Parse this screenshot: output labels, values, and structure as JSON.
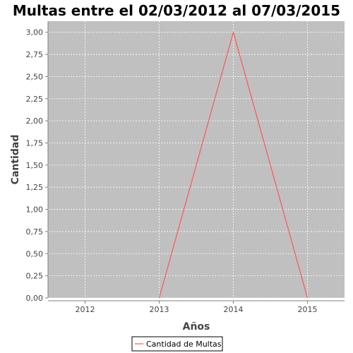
{
  "chart_data": {
    "type": "line",
    "title": "Multas entre el  02/03/2012 al 07/03/2015",
    "xlabel": "Años",
    "ylabel": "Cantidad",
    "categories": [
      "2012",
      "2013",
      "2014",
      "2015"
    ],
    "series": [
      {
        "name": "Cantidad de Multas",
        "values": [
          null,
          0,
          3,
          0
        ],
        "color": "#ff5555"
      }
    ],
    "ylim": [
      0,
      3.125
    ],
    "yticks": [
      0,
      0.25,
      0.5,
      0.75,
      1,
      1.25,
      1.5,
      1.75,
      2,
      2.25,
      2.5,
      2.75,
      3
    ],
    "ytick_labels": [
      "0,00",
      "0,25",
      "0,50",
      "0,75",
      "1,00",
      "1,25",
      "1,50",
      "1,75",
      "2,00",
      "2,25",
      "2,50",
      "2,75",
      "3,00"
    ],
    "grid": true,
    "legend": "bottom",
    "plot_background": "#c0c0c0"
  }
}
